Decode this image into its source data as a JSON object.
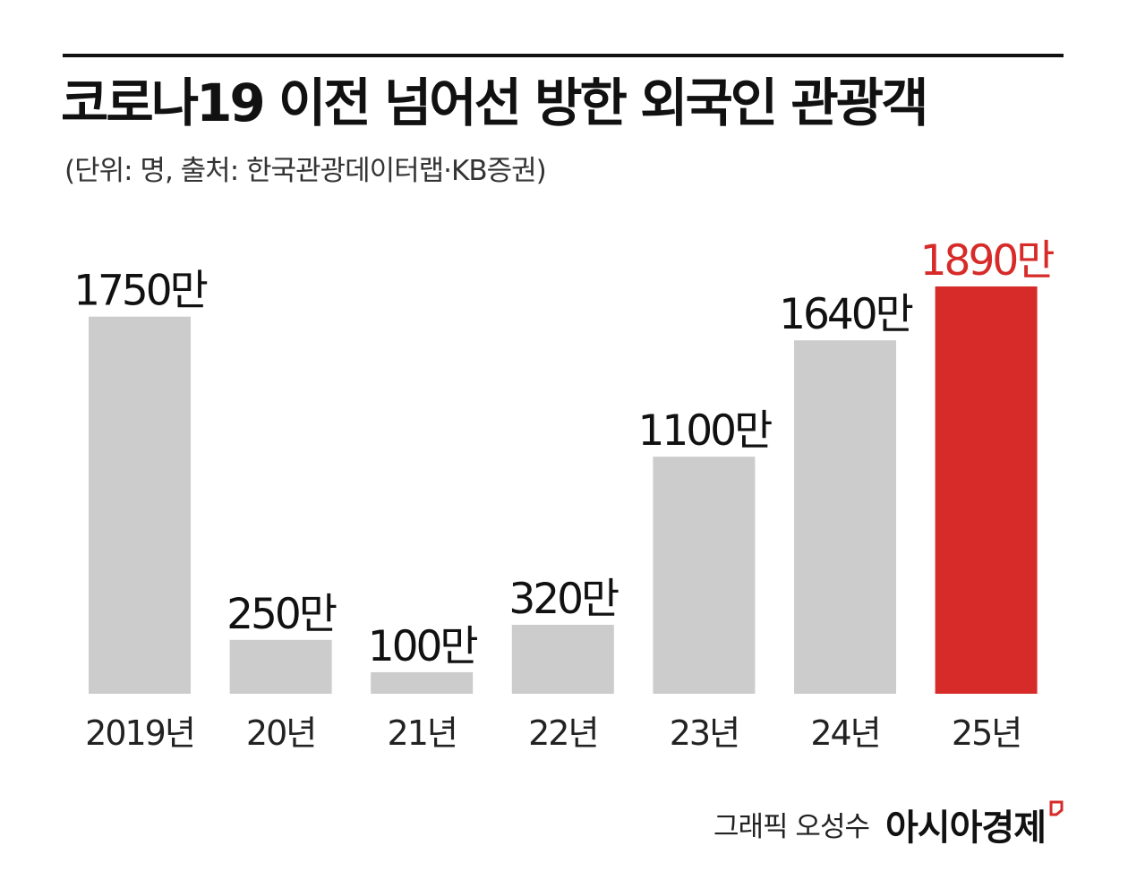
{
  "title": "코로나19 이전 넘어선 방한 외국인 관광객",
  "subtitle": "(단위: 명, 출처: 한국관광데이터랩·KB증권)",
  "credit": "그래픽 오성수",
  "logo": "아시아경제",
  "colors": {
    "bar": "#cccccc",
    "highlight": "#d62b28",
    "text": "#111111",
    "highlight_text": "#d62b28"
  },
  "chart_data": {
    "type": "bar",
    "categories": [
      "2019년",
      "20년",
      "21년",
      "22년",
      "23년",
      "24년",
      "25년"
    ],
    "values": [
      1750,
      250,
      100,
      320,
      1100,
      1640,
      1890
    ],
    "labels": [
      "1750만",
      "250만",
      "100만",
      "320만",
      "1100만",
      "1640만",
      "1890만"
    ],
    "highlight_index": 6,
    "ylim": [
      0,
      1890
    ],
    "grid": false,
    "legend": "none"
  }
}
